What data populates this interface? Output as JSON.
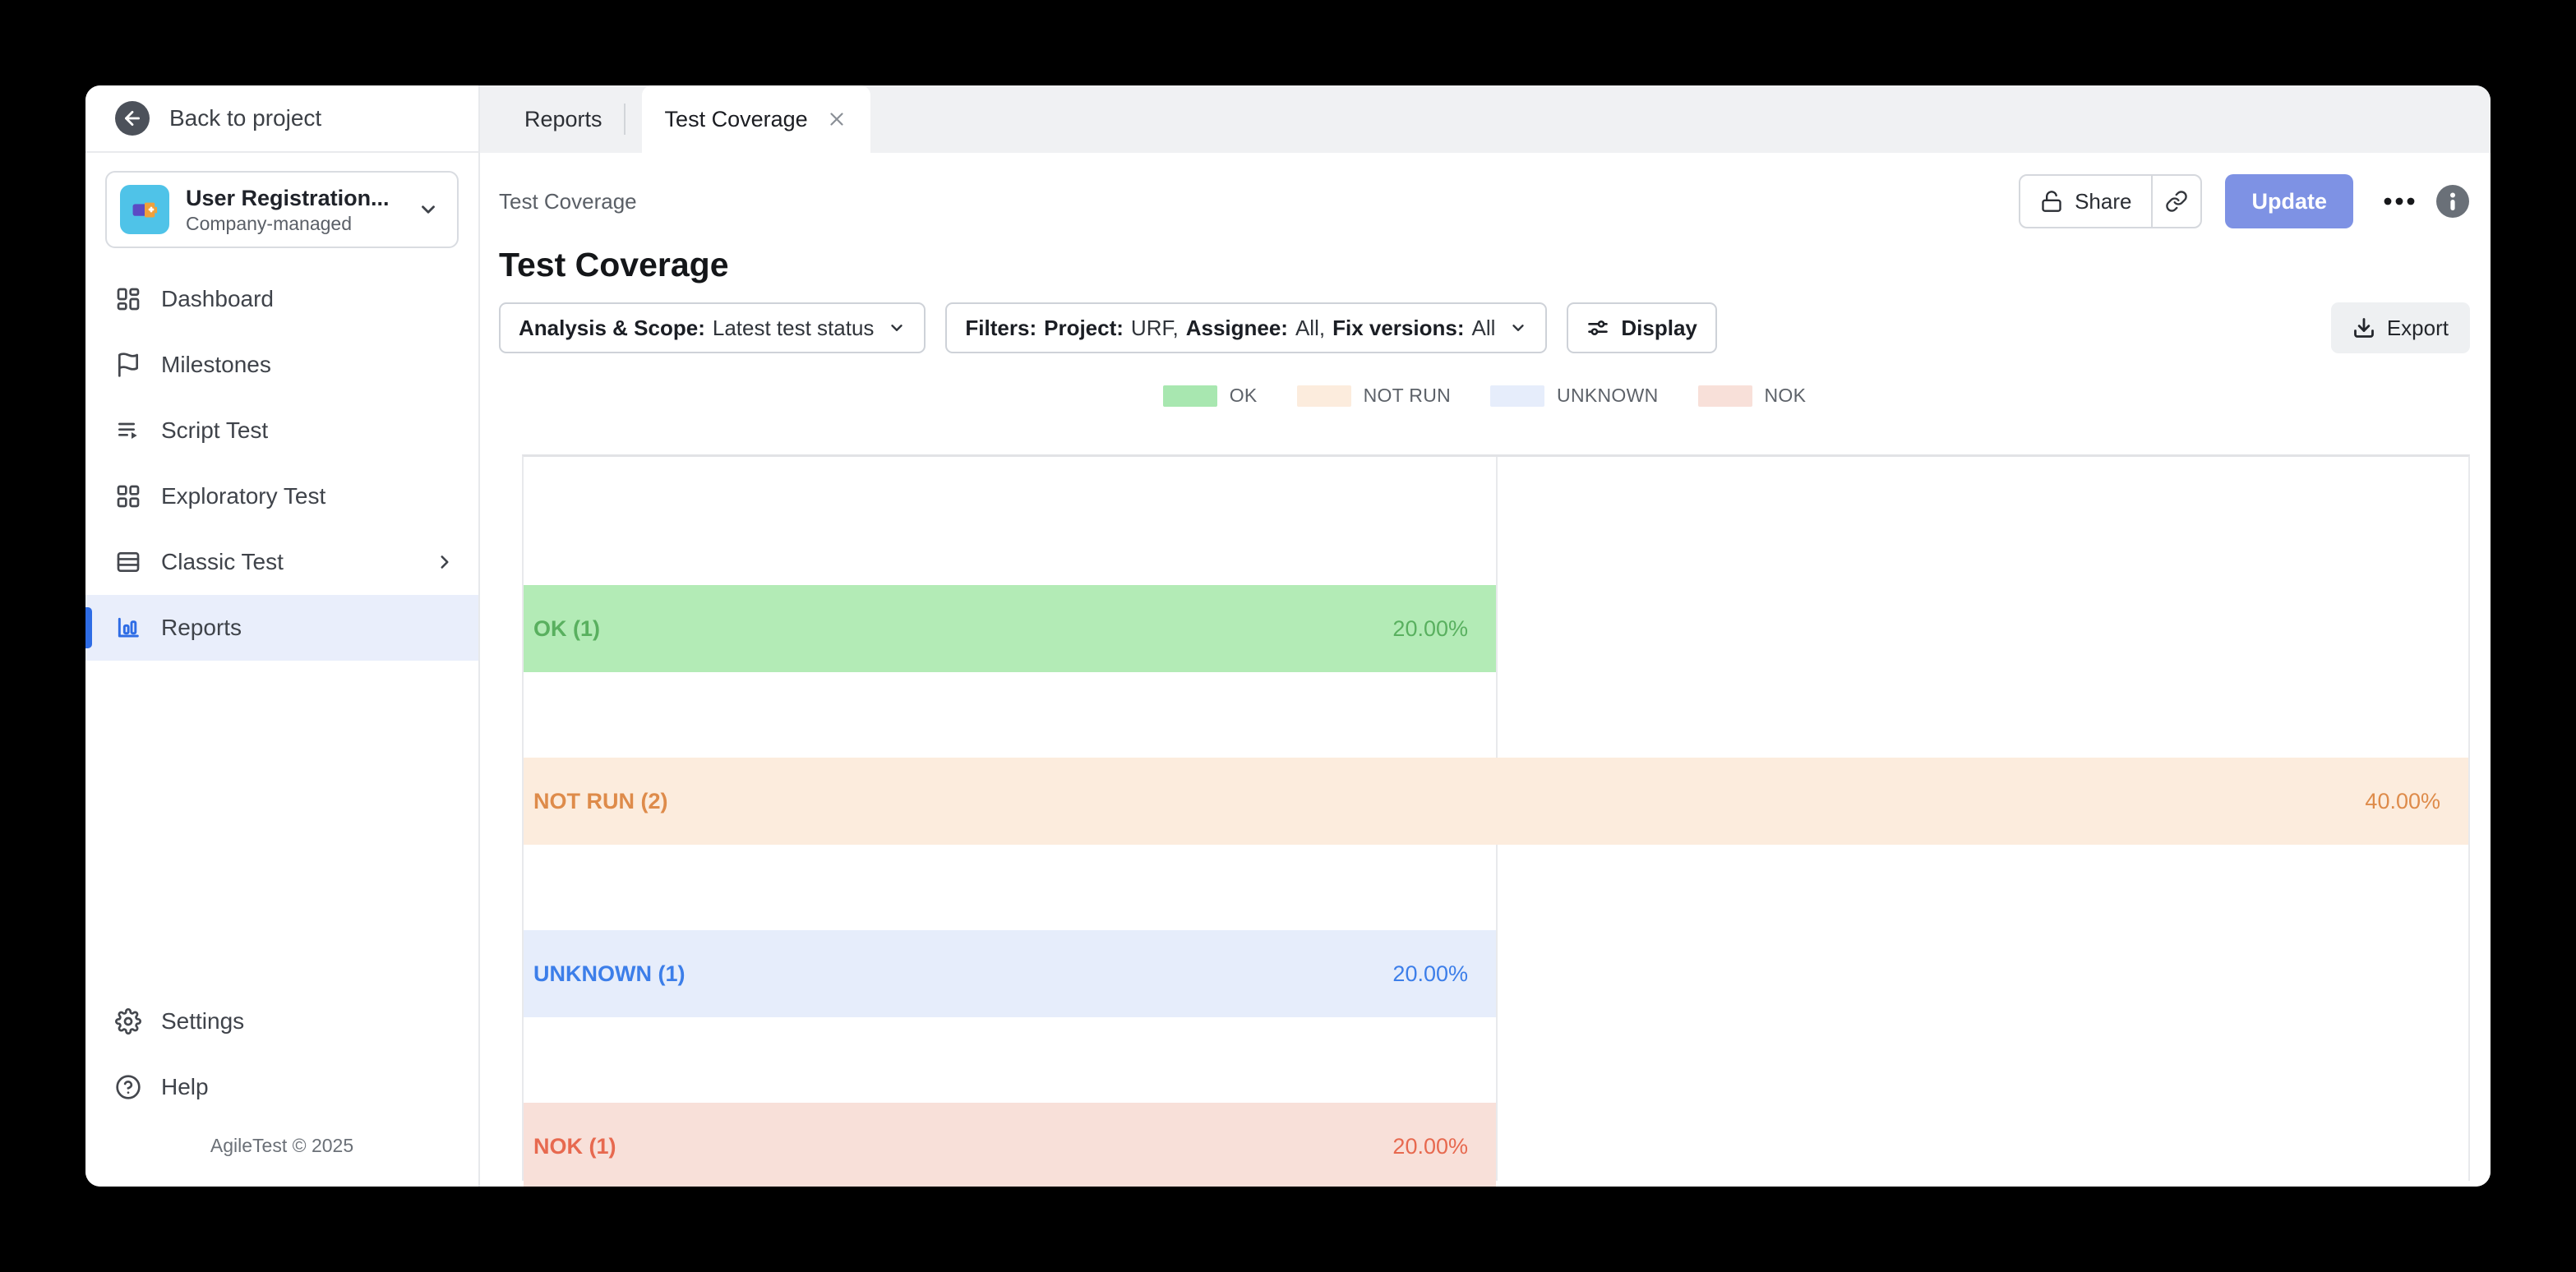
{
  "colors": {
    "accent_blue": "#2e6ce5",
    "update_button": "#7e92e4",
    "sidebar_active_bg": "#e9eefb",
    "tabstrip_bg": "#f0f1f3",
    "project_avatar_bg": "#4fc3e8"
  },
  "sidebar": {
    "back_label": "Back to project",
    "project": {
      "name": "User Registration...",
      "type": "Company-managed",
      "avatar_icon": "battery-icon"
    },
    "items": [
      {
        "label": "Dashboard",
        "icon": "dashboard-icon",
        "active": false
      },
      {
        "label": "Milestones",
        "icon": "flag-icon",
        "active": false
      },
      {
        "label": "Script Test",
        "icon": "script-list-icon",
        "active": false
      },
      {
        "label": "Exploratory Test",
        "icon": "grid-icon",
        "active": false
      },
      {
        "label": "Classic Test",
        "icon": "rows-icon",
        "active": false,
        "has_submenu": true
      },
      {
        "label": "Reports",
        "icon": "bar-chart-icon",
        "active": true
      }
    ],
    "footer_items": [
      {
        "label": "Settings",
        "icon": "gear-icon"
      },
      {
        "label": "Help",
        "icon": "help-icon"
      }
    ],
    "copyright": "AgileTest © 2025"
  },
  "tabs": [
    {
      "label": "Reports",
      "active": false
    },
    {
      "label": "Test Coverage",
      "active": true,
      "closable": true
    }
  ],
  "toolbar": {
    "breadcrumb": "Test Coverage",
    "share_label": "Share",
    "update_label": "Update"
  },
  "page": {
    "title": "Test Coverage"
  },
  "filters": {
    "analysis_scope": {
      "label": "Analysis & Scope:",
      "value": "Latest test status"
    },
    "filters_button": {
      "prefix": "Filters:",
      "parts": [
        {
          "label": "Project:",
          "value": "URF,"
        },
        {
          "label": "Assignee:",
          "value": "All,"
        },
        {
          "label": "Fix versions:",
          "value": "All"
        }
      ]
    },
    "display_label": "Display",
    "export_label": "Export"
  },
  "chart_data": {
    "type": "bar",
    "orientation": "horizontal",
    "title": "Test Coverage",
    "categories": [
      "OK",
      "NOT RUN",
      "UNKNOWN",
      "NOK"
    ],
    "counts": [
      1,
      2,
      1,
      1
    ],
    "values": [
      20,
      40,
      20,
      20
    ],
    "bar_labels": [
      "OK (1)",
      "NOT RUN (2)",
      "UNKNOWN (1)",
      "NOK (1)"
    ],
    "value_labels": [
      "20.00%",
      "40.00%",
      "20.00%",
      "20.00%"
    ],
    "xlim": [
      0,
      40
    ],
    "gridlines_pct": [
      20
    ],
    "grid": true,
    "legend_position": "top-center",
    "legend": [
      {
        "label": "OK",
        "color": "#a8e7b0"
      },
      {
        "label": "NOT RUN",
        "color": "#fcecdd"
      },
      {
        "label": "UNKNOWN",
        "color": "#e6edfb"
      },
      {
        "label": "NOK",
        "color": "#f8e0d9"
      }
    ],
    "bar_styles": [
      {
        "fill": "#b3ebb6",
        "text": "#59b05f"
      },
      {
        "fill": "#fcecdd",
        "text": "#de8b4a"
      },
      {
        "fill": "#e6edfb",
        "text": "#3c7ee9"
      },
      {
        "fill": "#f8e0d9",
        "text": "#e7694f"
      }
    ]
  }
}
